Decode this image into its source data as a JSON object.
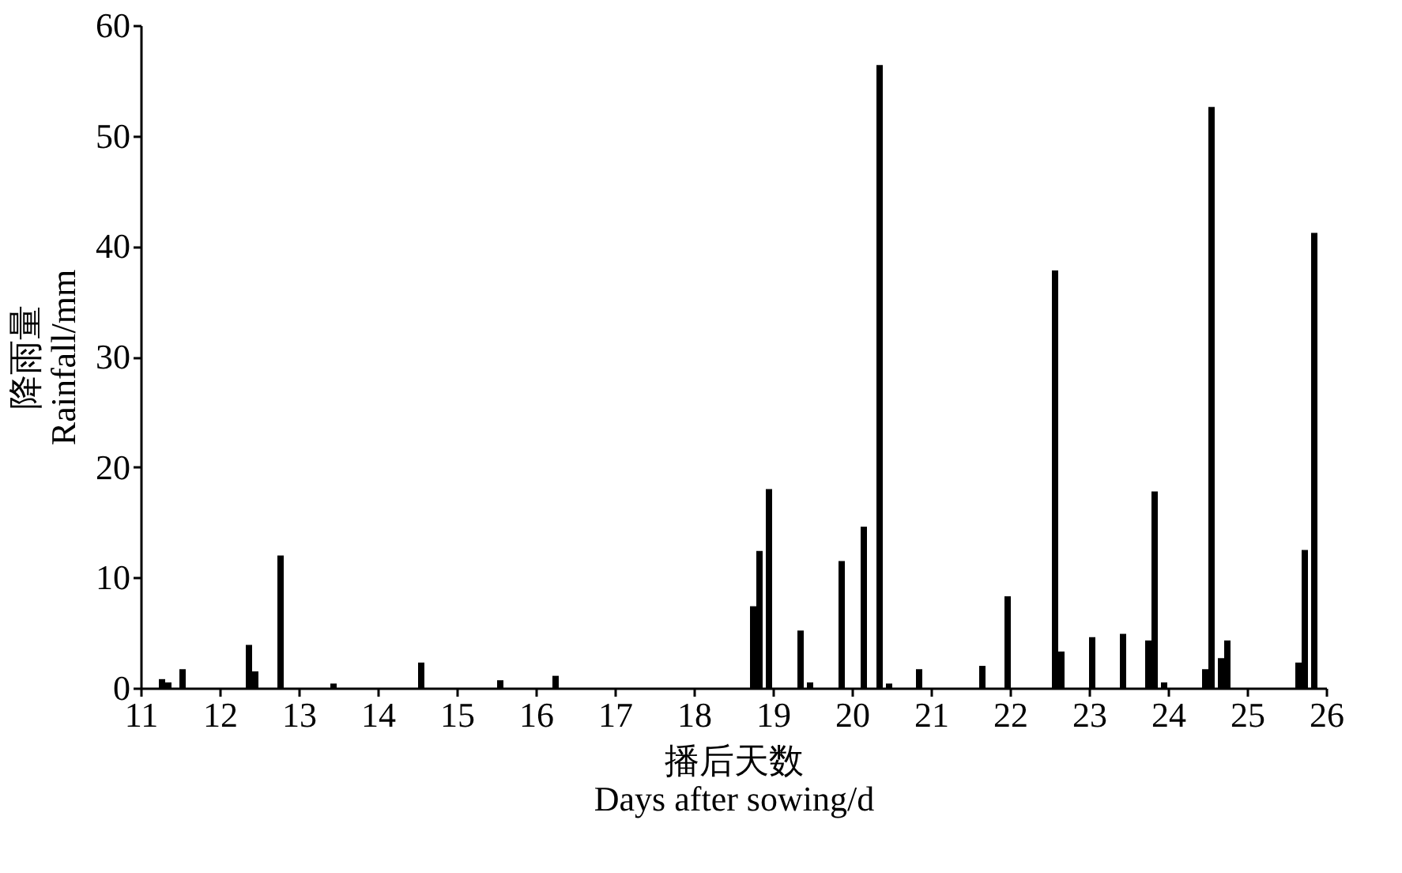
{
  "chart_data": {
    "type": "bar",
    "xlabel": "播后天数\nDays after sowing/d",
    "ylabel": "降雨量\nRainfall/mm",
    "x": [
      11.27,
      11.35,
      11.53,
      12.37,
      12.45,
      12.77,
      13.44,
      14.55,
      15.55,
      16.25,
      18.75,
      18.83,
      18.95,
      19.35,
      19.47,
      19.87,
      20.15,
      20.35,
      20.47,
      20.85,
      21.65,
      21.97,
      22.57,
      22.65,
      23.04,
      23.43,
      23.75,
      23.83,
      23.95,
      24.47,
      24.55,
      24.67,
      24.75,
      25.65,
      25.73,
      25.85
    ],
    "values": [
      0.8,
      0.5,
      1.7,
      3.9,
      1.5,
      12.0,
      0.4,
      2.3,
      0.7,
      1.1,
      7.4,
      12.4,
      18.0,
      5.2,
      0.5,
      11.5,
      14.6,
      56.4,
      0.4,
      1.7,
      2.0,
      8.3,
      37.8,
      3.3,
      4.6,
      4.9,
      4.3,
      17.8,
      0.5,
      1.7,
      52.6,
      2.7,
      4.3,
      2.3,
      12.5,
      41.2
    ],
    "color": "#000000",
    "xlim": [
      11,
      26
    ],
    "xticks": [
      11,
      12,
      13,
      14,
      15,
      16,
      17,
      18,
      19,
      20,
      21,
      22,
      23,
      24,
      25,
      26
    ],
    "ylim": [
      0,
      60
    ],
    "yticks": [
      0,
      10,
      20,
      30,
      40,
      50,
      60
    ],
    "grid": false
  }
}
